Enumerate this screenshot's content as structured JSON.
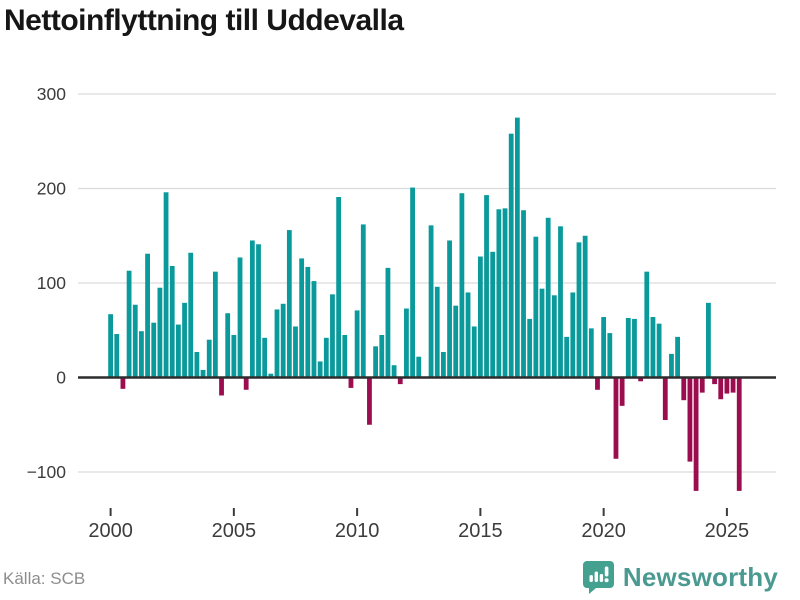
{
  "title": "Nettoinflyttning till Uddevalla",
  "source": "Källa: SCB",
  "brand": {
    "name": "Newsworthy",
    "icon": "bar-chart-pin-icon",
    "color": "#44a08f"
  },
  "colors": {
    "positive_bar": "#0a9a9b",
    "negative_bar": "#9c0d4f",
    "axis_line": "#2d2d2d",
    "gridline": "#dcdcdc",
    "tick_label": "#3c3c3c",
    "title_text": "#161616",
    "source_text": "#8d8d8d"
  },
  "chart_data": {
    "type": "bar",
    "title": "Nettoinflyttning till Uddevalla",
    "frequency": "quarterly",
    "start_period": "2000 Q1",
    "end_period": "2025 Q3",
    "grid": true,
    "legend": false,
    "ylim": [
      -140,
      320
    ],
    "y_ticks": [
      300,
      200,
      100,
      0,
      -100
    ],
    "x_tick_years": [
      2000,
      2005,
      2010,
      2015,
      2020,
      2025
    ],
    "series": [
      {
        "name": "Nettoinflyttning",
        "values": [
          67,
          46,
          -12,
          113,
          77,
          49,
          131,
          58,
          95,
          196,
          118,
          56,
          79,
          132,
          27,
          8,
          40,
          112,
          -19,
          68,
          45,
          127,
          -13,
          145,
          141,
          42,
          4,
          72,
          78,
          156,
          54,
          126,
          117,
          102,
          17,
          42,
          88,
          191,
          45,
          -11,
          71,
          162,
          -50,
          33,
          45,
          116,
          13,
          -7,
          73,
          201,
          22,
          0,
          161,
          96,
          27,
          145,
          76,
          195,
          90,
          54,
          128,
          193,
          133,
          178,
          179,
          258,
          275,
          177,
          62,
          149,
          94,
          169,
          87,
          160,
          43,
          90,
          143,
          150,
          52,
          -13,
          64,
          47,
          -86,
          -30,
          63,
          62,
          -4,
          112,
          64,
          57,
          -45,
          25,
          43,
          -24,
          -89,
          -120,
          -16,
          79,
          -7,
          -23,
          -17,
          -16,
          -120
        ]
      }
    ]
  }
}
